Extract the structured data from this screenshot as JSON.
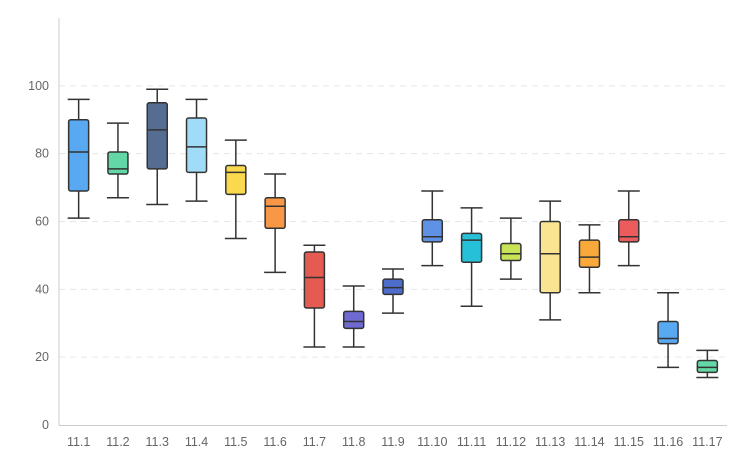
{
  "chart_data": {
    "type": "boxplot",
    "title": "",
    "xlabel": "",
    "ylabel": "",
    "ylim": [
      0,
      120
    ],
    "yticks": [
      0,
      20,
      40,
      60,
      80,
      100
    ],
    "grid": "horizontal-dashed",
    "categories": [
      "11.1",
      "11.2",
      "11.3",
      "11.4",
      "11.5",
      "11.6",
      "11.7",
      "11.8",
      "11.9",
      "11.10",
      "11.11",
      "11.12",
      "11.13",
      "11.14",
      "11.15",
      "11.16",
      "11.17"
    ],
    "boxes": [
      {
        "min": 61,
        "q1": 69,
        "median": 80.5,
        "q3": 90,
        "max": 96,
        "color": "#59a8f2"
      },
      {
        "min": 67,
        "q1": 74,
        "median": 75.5,
        "q3": 80.5,
        "max": 89,
        "color": "#63d8a6"
      },
      {
        "min": 65,
        "q1": 75.5,
        "median": 87,
        "q3": 95,
        "max": 99,
        "color": "#566d92"
      },
      {
        "min": 66,
        "q1": 74.5,
        "median": 82,
        "q3": 90.5,
        "max": 96,
        "color": "#a0dcf8"
      },
      {
        "min": 55,
        "q1": 68,
        "median": 74.5,
        "q3": 76.5,
        "max": 84,
        "color": "#fad94c"
      },
      {
        "min": 45,
        "q1": 58,
        "median": 64.5,
        "q3": 67,
        "max": 74,
        "color": "#f89847"
      },
      {
        "min": 23,
        "q1": 34.5,
        "median": 43.5,
        "q3": 51,
        "max": 53,
        "color": "#e55b52"
      },
      {
        "min": 23,
        "q1": 28.5,
        "median": 30.5,
        "q3": 33.5,
        "max": 41,
        "color": "#6f6ad2"
      },
      {
        "min": 33,
        "q1": 38.5,
        "median": 40.5,
        "q3": 43,
        "max": 46,
        "color": "#4e6ccc"
      },
      {
        "min": 47,
        "q1": 54,
        "median": 55.5,
        "q3": 60.5,
        "max": 69,
        "color": "#5f92e5"
      },
      {
        "min": 35,
        "q1": 48,
        "median": 54.5,
        "q3": 56.5,
        "max": 64,
        "color": "#27c0d9"
      },
      {
        "min": 43,
        "q1": 48.5,
        "median": 50.5,
        "q3": 53.5,
        "max": 61,
        "color": "#c8e456"
      },
      {
        "min": 31,
        "q1": 39,
        "median": 50.5,
        "q3": 60,
        "max": 66,
        "color": "#fbe491"
      },
      {
        "min": 39,
        "q1": 46.5,
        "median": 49.5,
        "q3": 54.5,
        "max": 59,
        "color": "#f9a93b"
      },
      {
        "min": 47,
        "q1": 54,
        "median": 55.5,
        "q3": 60.5,
        "max": 69,
        "color": "#ec5c5d"
      },
      {
        "min": 17,
        "q1": 24,
        "median": 25.5,
        "q3": 30.5,
        "max": 39,
        "color": "#59a8f2"
      },
      {
        "min": 14,
        "q1": 15.5,
        "median": 17,
        "q3": 19,
        "max": 22,
        "color": "#63d8a6"
      }
    ]
  }
}
